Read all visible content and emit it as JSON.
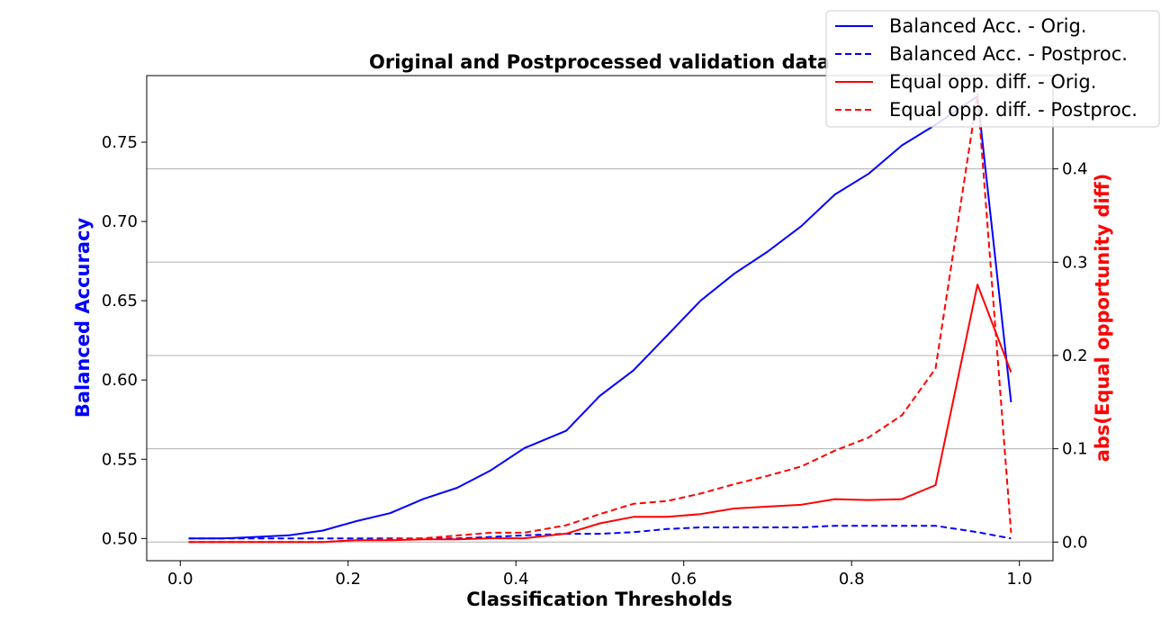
{
  "chart_data": {
    "type": "line",
    "title": "Original and Postprocessed validation data",
    "xlabel": "Classification Thresholds",
    "ylabel_left": "Balanced Accuracy",
    "ylabel_right": "abs(Equal opportunity diff)",
    "xlim": [
      -0.04,
      1.04
    ],
    "ylim_left": [
      0.486,
      0.792
    ],
    "ylim_right": [
      -0.02,
      0.5
    ],
    "x_ticks": [
      "0.0",
      "0.2",
      "0.4",
      "0.6",
      "0.8",
      "1.0"
    ],
    "y_left_ticks": [
      "0.50",
      "0.55",
      "0.60",
      "0.65",
      "0.70",
      "0.75"
    ],
    "y_right_ticks": [
      "0.0",
      "0.1",
      "0.2",
      "0.3",
      "0.4"
    ],
    "grid": "horizontal (right axis)",
    "legend_position": "top-right",
    "colors": {
      "left_axis": "#0000ff",
      "right_axis": "#ff0000"
    },
    "x": [
      0.01,
      0.05,
      0.09,
      0.13,
      0.17,
      0.21,
      0.25,
      0.29,
      0.33,
      0.37,
      0.41,
      0.46,
      0.5,
      0.54,
      0.58,
      0.62,
      0.66,
      0.7,
      0.74,
      0.78,
      0.82,
      0.86,
      0.9,
      0.95,
      0.99
    ],
    "series": [
      {
        "name": "Balanced Acc. - Orig.",
        "axis": "left",
        "color": "#0000ff",
        "dash": "solid",
        "values": [
          0.5,
          0.5,
          0.501,
          0.502,
          0.505,
          0.511,
          0.516,
          0.525,
          0.532,
          0.543,
          0.557,
          0.568,
          0.59,
          0.606,
          0.628,
          0.65,
          0.667,
          0.681,
          0.697,
          0.717,
          0.73,
          0.748,
          0.761,
          0.779,
          0.586
        ]
      },
      {
        "name": "Balanced Acc. - Postproc.",
        "axis": "left",
        "color": "#0000ff",
        "dash": "dashed",
        "values": [
          0.5,
          0.5,
          0.5,
          0.5,
          0.5,
          0.5,
          0.5,
          0.5,
          0.5,
          0.501,
          0.502,
          0.503,
          0.503,
          0.504,
          0.506,
          0.507,
          0.507,
          0.507,
          0.507,
          0.508,
          0.508,
          0.508,
          0.508,
          0.504,
          0.5
        ]
      },
      {
        "name": "Equal opp. diff. - Orig.",
        "axis": "right",
        "color": "#ff0000",
        "dash": "solid",
        "values": [
          0.0,
          0.0,
          0.0,
          0.0,
          0.0,
          0.002,
          0.002,
          0.003,
          0.003,
          0.004,
          0.004,
          0.009,
          0.02,
          0.027,
          0.027,
          0.03,
          0.036,
          0.038,
          0.04,
          0.046,
          0.045,
          0.046,
          0.061,
          0.276,
          0.182
        ]
      },
      {
        "name": "Equal opp. diff. - Postproc.",
        "axis": "right",
        "color": "#ff0000",
        "dash": "dashed",
        "values": [
          0.0,
          0.0,
          0.0,
          0.0,
          0.0,
          0.002,
          0.003,
          0.004,
          0.007,
          0.01,
          0.01,
          0.018,
          0.03,
          0.041,
          0.044,
          0.052,
          0.062,
          0.071,
          0.081,
          0.098,
          0.112,
          0.136,
          0.186,
          0.48,
          0.01
        ]
      }
    ]
  }
}
